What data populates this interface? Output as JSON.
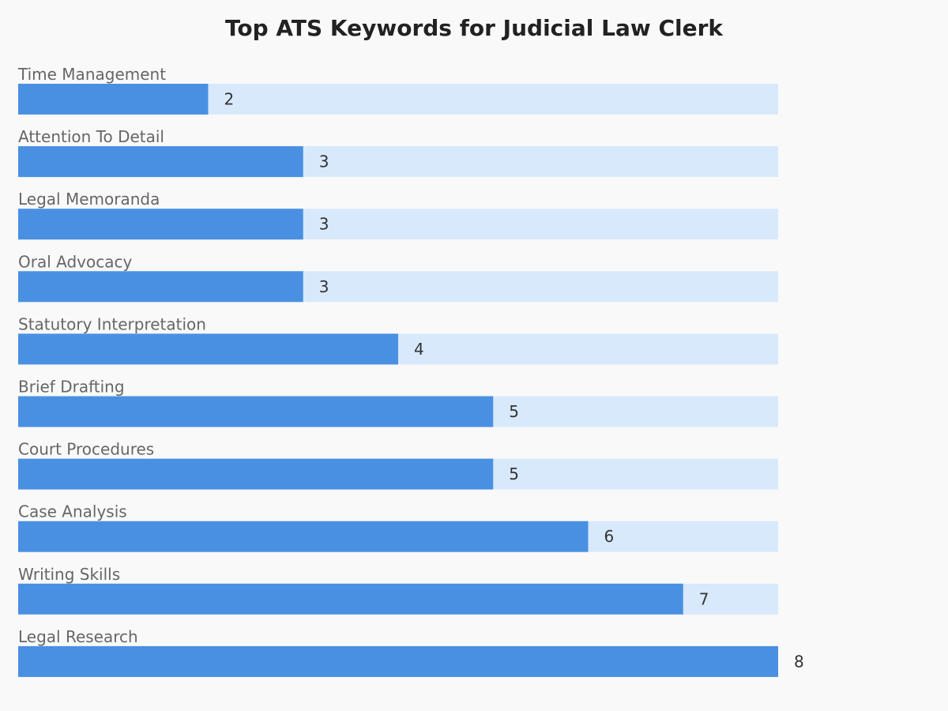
{
  "chart_data": {
    "type": "bar",
    "orientation": "horizontal",
    "title": "Top ATS Keywords for Judicial Law Clerk",
    "categories": [
      "Time Management",
      "Attention To Detail",
      "Legal Memoranda",
      "Oral Advocacy",
      "Statutory Interpretation",
      "Brief Drafting",
      "Court Procedures",
      "Case Analysis",
      "Writing Skills",
      "Legal Research"
    ],
    "values": [
      2,
      3,
      3,
      3,
      4,
      5,
      5,
      6,
      7,
      8
    ],
    "xlim": [
      0,
      8
    ],
    "grid": false,
    "legend": "none",
    "colors": {
      "bar": "#4a90e2",
      "track": "#d8e9fc",
      "background": "#f9f9f9"
    }
  }
}
